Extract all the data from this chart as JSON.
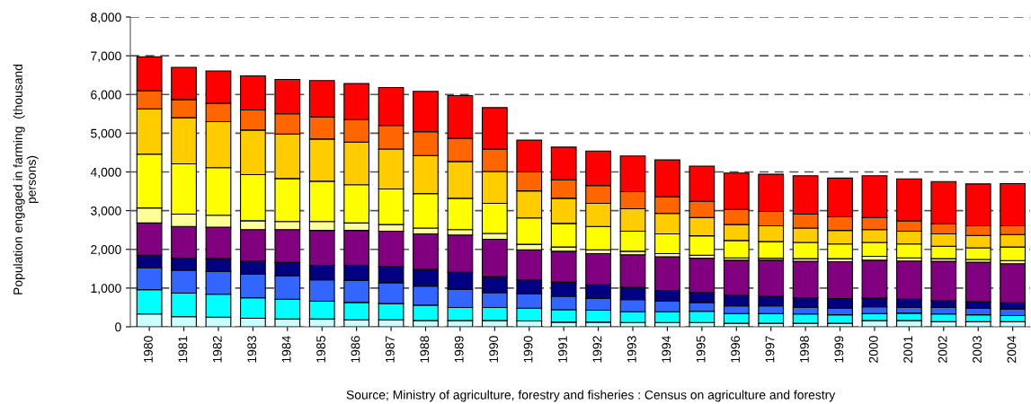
{
  "chart_data": {
    "type": "bar",
    "stacked": true,
    "ylabel": "Population engaged in farming  (thousand\npersons)",
    "categories": [
      "1980",
      "1981",
      "1982",
      "1983",
      "1984",
      "1985",
      "1986",
      "1987",
      "1988",
      "1989",
      "1990",
      "1990",
      "1991",
      "1992",
      "1993",
      "1994",
      "1995",
      "1996",
      "1997",
      "1998",
      "1999",
      "2000",
      "2001",
      "2002",
      "2003",
      "2004"
    ],
    "series": [
      {
        "color": "#ccffff",
        "values": [
          330,
          260,
          250,
          220,
          200,
          200,
          180,
          180,
          160,
          160,
          160,
          150,
          120,
          120,
          110,
          110,
          110,
          90,
          90,
          90,
          90,
          160,
          160,
          130,
          130,
          130
        ]
      },
      {
        "color": "#00ffff",
        "values": [
          630,
          610,
          590,
          530,
          510,
          460,
          450,
          420,
          400,
          340,
          340,
          330,
          320,
          310,
          280,
          280,
          290,
          250,
          250,
          240,
          220,
          180,
          190,
          200,
          180,
          160
        ]
      },
      {
        "color": "#3366ff",
        "values": [
          560,
          590,
          590,
          610,
          610,
          550,
          570,
          540,
          490,
          470,
          380,
          370,
          350,
          300,
          310,
          270,
          230,
          200,
          200,
          170,
          170,
          180,
          150,
          170,
          170,
          170
        ]
      },
      {
        "color": "#000080",
        "values": [
          330,
          310,
          330,
          330,
          340,
          380,
          390,
          410,
          430,
          440,
          410,
          360,
          360,
          350,
          320,
          280,
          260,
          270,
          250,
          250,
          250,
          220,
          210,
          170,
          170,
          160
        ]
      },
      {
        "color": "#800080",
        "values": [
          830,
          820,
          810,
          820,
          850,
          900,
          900,
          920,
          920,
          960,
          970,
          780,
          800,
          810,
          840,
          870,
          880,
          910,
          930,
          940,
          950,
          980,
          990,
          1020,
          1020,
          1010
        ]
      },
      {
        "color": "#ffff99",
        "values": [
          390,
          320,
          310,
          230,
          210,
          230,
          190,
          170,
          150,
          140,
          150,
          140,
          110,
          100,
          90,
          80,
          80,
          60,
          50,
          70,
          80,
          100,
          80,
          70,
          70,
          80
        ]
      },
      {
        "color": "#ffff00",
        "values": [
          1390,
          1300,
          1230,
          1190,
          1110,
          1040,
          990,
          920,
          890,
          810,
          780,
          680,
          610,
          600,
          520,
          510,
          500,
          450,
          430,
          420,
          380,
          360,
          360,
          320,
          300,
          350
        ]
      },
      {
        "color": "#ffcc00",
        "values": [
          1170,
          1190,
          1190,
          1150,
          1150,
          1090,
          1100,
          1030,
          980,
          950,
          820,
          700,
          650,
          600,
          580,
          530,
          470,
          410,
          410,
          370,
          350,
          330,
          330,
          320,
          320,
          320
        ]
      },
      {
        "color": "#ff6600",
        "values": [
          470,
          470,
          470,
          520,
          520,
          570,
          580,
          610,
          620,
          600,
          580,
          490,
          480,
          460,
          440,
          430,
          420,
          390,
          370,
          360,
          350,
          310,
          270,
          260,
          250,
          230
        ]
      },
      {
        "color": "#ff0000",
        "values": [
          870,
          830,
          840,
          880,
          890,
          940,
          930,
          980,
          1040,
          1100,
          1070,
          820,
          840,
          890,
          920,
          950,
          910,
          940,
          960,
          990,
          1000,
          1080,
          1080,
          1090,
          1080,
          1090
        ]
      }
    ],
    "ylim": [
      0,
      8000
    ],
    "yticks": [
      {
        "value": 0,
        "label": "0"
      },
      {
        "value": 1000,
        "label": "1,000"
      },
      {
        "value": 2000,
        "label": "2,000"
      },
      {
        "value": 3000,
        "label": "3,000"
      },
      {
        "value": 4000,
        "label": "4,000"
      },
      {
        "value": 5000,
        "label": "5,000"
      },
      {
        "value": 6000,
        "label": "6,000"
      },
      {
        "value": 7000,
        "label": "7,000"
      },
      {
        "value": 8000,
        "label": "8,000"
      }
    ],
    "grid": "y",
    "line_style": "dashed",
    "annotations": [
      "Source; Ministry of agriculture, forestry and fisheries : Census on agriculture and forestry"
    ]
  }
}
